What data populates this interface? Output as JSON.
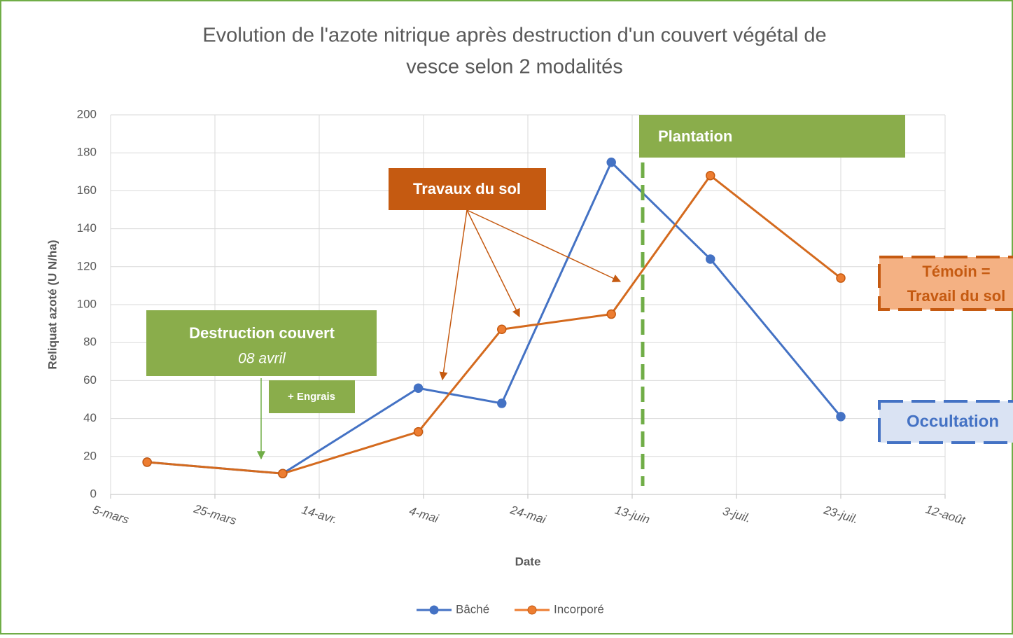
{
  "chart_data": {
    "type": "line",
    "title": "Evolution de l'azote nitrique après destruction d'un couvert végétal de",
    "subtitle": "vesce selon 2 modalités",
    "x_label": "Date",
    "y_label": "Reliquat azoté (U N/ha)",
    "x": [
      "03-12",
      "04-07",
      "05-03",
      "05-19",
      "06-09",
      "06-28",
      "07-23"
    ],
    "series": [
      {
        "name": "Bâché",
        "color": "#4472c4",
        "values": [
          17,
          11,
          56,
          48,
          175,
          124,
          41
        ]
      },
      {
        "name": "Incorporé",
        "color": "#ed7d31",
        "values": [
          17,
          11,
          33,
          87,
          95,
          168,
          114
        ]
      }
    ],
    "xlim": [
      "03-05",
      "08-12"
    ],
    "xticks": [
      {
        "value": "03-05",
        "label": "5-mars"
      },
      {
        "value": "03-25",
        "label": "25-mars"
      },
      {
        "value": "04-14",
        "label": "14-avr."
      },
      {
        "value": "05-04",
        "label": "4-mai"
      },
      {
        "value": "05-24",
        "label": "24-mai"
      },
      {
        "value": "06-13",
        "label": "13-juin"
      },
      {
        "value": "07-03",
        "label": "3-juil."
      },
      {
        "value": "07-23",
        "label": "23-juil."
      },
      {
        "value": "08-12",
        "label": "12-août"
      }
    ],
    "ylim": [
      0,
      200
    ],
    "yticks": [
      0,
      20,
      40,
      60,
      80,
      100,
      120,
      140,
      160,
      180,
      200
    ],
    "grid": true,
    "legend": "bottom",
    "annotations": {
      "plantation": "Plantation",
      "travaux": "Travaux du sol",
      "destruction": "Destruction couvert",
      "destruction_date": "08 avril",
      "engrais": "+ Engrais",
      "temoin_1": "Témoin =",
      "temoin_2": "Travail du sol",
      "occultation": "Occultation"
    }
  }
}
